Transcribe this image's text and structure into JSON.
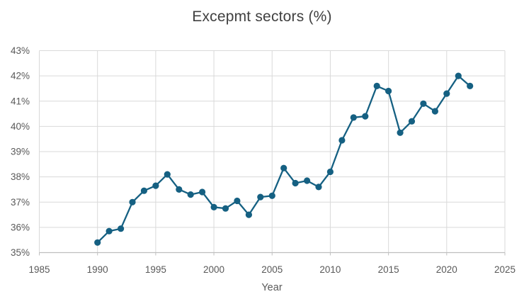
{
  "title": "Excepmt sectors (%)",
  "chart_data": {
    "type": "line",
    "title": "Excepmt sectors (%)",
    "xlabel": "Year",
    "ylabel": "",
    "x": [
      1990,
      1991,
      1992,
      1993,
      1994,
      1995,
      1996,
      1997,
      1998,
      1999,
      2000,
      2001,
      2002,
      2003,
      2004,
      2005,
      2006,
      2007,
      2008,
      2009,
      2010,
      2011,
      2012,
      2013,
      2014,
      2015,
      2016,
      2017,
      2018,
      2019,
      2020,
      2021,
      2022
    ],
    "values": [
      35.4,
      35.85,
      35.95,
      37.0,
      37.45,
      37.65,
      38.1,
      37.5,
      37.3,
      37.4,
      36.8,
      36.75,
      37.05,
      36.5,
      37.2,
      37.25,
      38.35,
      37.75,
      37.85,
      37.6,
      38.2,
      39.45,
      40.35,
      40.4,
      41.6,
      41.4,
      39.75,
      40.2,
      40.9,
      40.6,
      41.3,
      42.0,
      41.6
    ],
    "xlim": [
      1985,
      2025
    ],
    "ylim": [
      35,
      43
    ],
    "x_ticks": [
      1985,
      1990,
      1995,
      2000,
      2005,
      2010,
      2015,
      2020,
      2025
    ],
    "y_ticks": [
      35,
      36,
      37,
      38,
      39,
      40,
      41,
      42,
      43
    ],
    "y_tick_labels": [
      "35%",
      "36%",
      "37%",
      "38%",
      "39%",
      "40%",
      "41%",
      "42%",
      "43%"
    ],
    "grid": true,
    "legend": false,
    "marker": "circle"
  },
  "colors": {
    "series": "#156082",
    "gridline": "#d9d9d9",
    "axis_line": "#bfbfbf",
    "tick_label": "#595959",
    "axis_title": "#595959",
    "chart_title": "#404040",
    "background": "#ffffff"
  }
}
